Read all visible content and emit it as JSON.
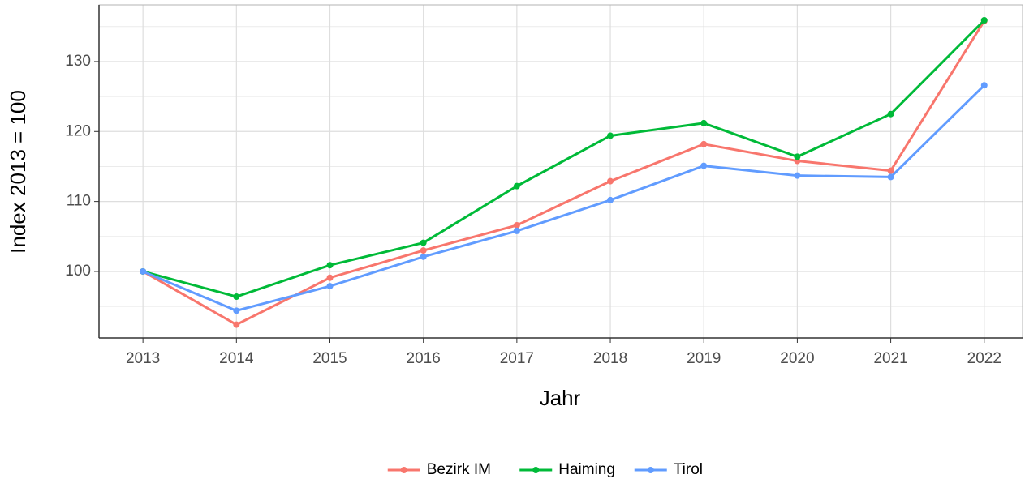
{
  "chart_data": {
    "type": "line",
    "xlabel": "Jahr",
    "ylabel": "Index  2013  = 100",
    "x": [
      2013,
      2014,
      2015,
      2016,
      2017,
      2018,
      2019,
      2020,
      2021,
      2022
    ],
    "series": [
      {
        "name": "Bezirk IM",
        "color": "#F8766D",
        "values": [
          100,
          92.4,
          99.1,
          103.0,
          106.6,
          112.9,
          118.2,
          115.8,
          114.4,
          135.8
        ]
      },
      {
        "name": "Haiming",
        "color": "#00BA38",
        "values": [
          100,
          96.4,
          100.9,
          104.1,
          112.2,
          119.4,
          121.2,
          116.4,
          122.5,
          135.9
        ]
      },
      {
        "name": "Tirol",
        "color": "#619CFF",
        "values": [
          100,
          94.4,
          97.9,
          102.1,
          105.8,
          110.2,
          115.1,
          113.7,
          113.5,
          126.6
        ]
      }
    ],
    "xlim": [
      2012.53,
      2022.41
    ],
    "xticks": [
      2013,
      2014,
      2015,
      2016,
      2017,
      2018,
      2019,
      2020,
      2021,
      2022
    ],
    "ylim": [
      90.5,
      138.1
    ],
    "yticks": [
      100,
      110,
      120,
      130
    ],
    "yminorticks": [
      95,
      105,
      115,
      125,
      135
    ],
    "grid": true,
    "legend": "bottom"
  }
}
